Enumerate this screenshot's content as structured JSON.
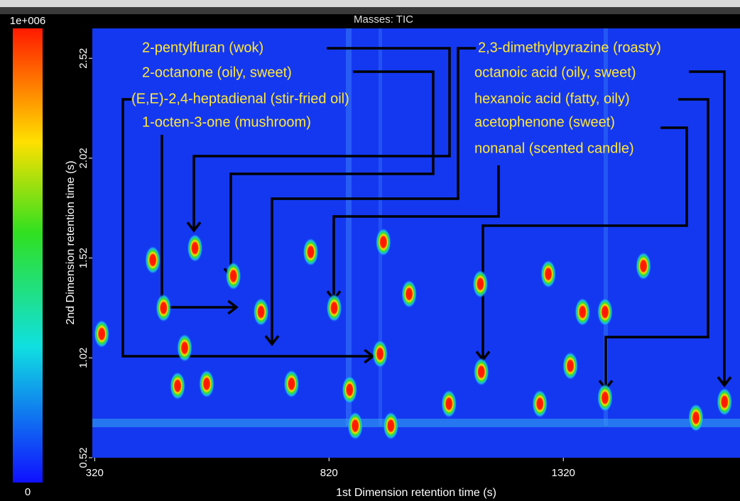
{
  "chart_data": {
    "type": "scatter",
    "title": "Masses: TIC",
    "xlabel": "1st Dimension retention time (s)",
    "ylabel": "2nd Dimension retention time (s)",
    "xlim": [
      315,
      1697
    ],
    "ylim": [
      0.52,
      2.67
    ],
    "xticks": [
      320,
      820,
      1320
    ],
    "yticks": [
      0.52,
      1.02,
      1.52,
      2.02,
      2.52
    ],
    "clim": [
      0,
      1000000
    ],
    "colorbar_ticks": [
      {
        "value": 1000000,
        "label": "1e+006"
      },
      0
    ],
    "x": [
      335,
      444,
      467,
      534,
      616,
      675,
      781,
      831,
      864,
      929,
      936,
      991,
      1143,
      1145,
      1288,
      1335,
      1361,
      1409,
      1409,
      1491,
      559,
      497,
      512,
      1270,
      1603,
      1664,
      952,
      876,
      740,
      1076
    ],
    "y": [
      1.14,
      1.51,
      1.27,
      1.57,
      1.43,
      1.25,
      1.55,
      1.27,
      0.86,
      1.04,
      1.6,
      1.34,
      1.39,
      0.95,
      1.44,
      0.98,
      1.25,
      1.25,
      0.82,
      1.48,
      0.89,
      0.88,
      1.07,
      0.79,
      0.72,
      0.8,
      0.68,
      0.68,
      0.89,
      0.79
    ],
    "annotations": [
      "2-pentylfuran (wok)",
      "2-octanone (oily, sweet)",
      "(E,E)-2,4-heptadienal (stir-fried oil)",
      "1-octen-3-one (mushroom)",
      "2,3-dimethylpyrazine (roasty)",
      "octanoic acid (oily, sweet)",
      "hexanoic acid (fatty, oily)",
      "acetophenone (sweet)",
      "nonanal (scented candle)"
    ]
  }
}
